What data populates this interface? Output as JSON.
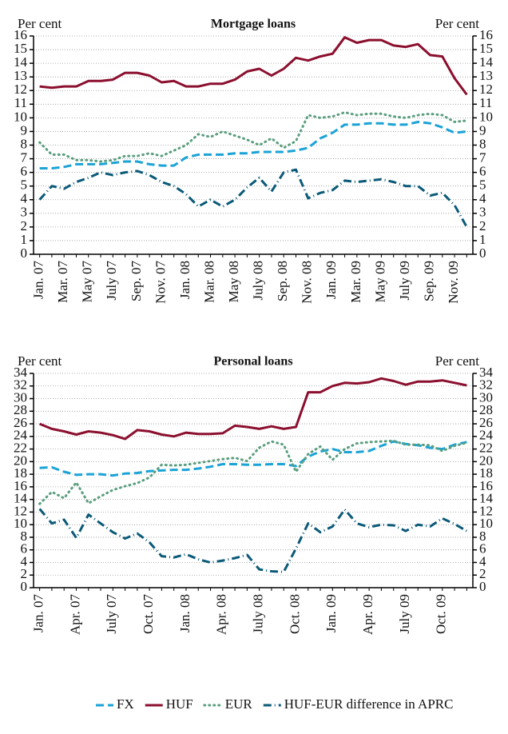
{
  "chart_data": [
    {
      "type": "line",
      "title": "Mortgage loans",
      "y_label": "Per cent",
      "y2_label": "Per cent",
      "categories": [
        "Jan. 07",
        null,
        "Mar. 07",
        null,
        "May 07",
        null,
        "July 07",
        null,
        "Sep. 07",
        null,
        "Nov. 07",
        null,
        "Jan. 08",
        null,
        "Mar. 08",
        null,
        "May 08",
        null,
        "July 08",
        null,
        "Sep. 08",
        null,
        "Nov. 08",
        null,
        "Jan. 09",
        null,
        "Mar. 09",
        null,
        "May 09",
        null,
        "July 09",
        null,
        "Sep. 09",
        null,
        "Nov. 09",
        null
      ],
      "ylim": [
        0,
        16
      ],
      "yticks": [
        0,
        1,
        2,
        3,
        4,
        5,
        6,
        7,
        8,
        9,
        10,
        11,
        12,
        13,
        14,
        15,
        16
      ],
      "y2lim": [
        0,
        16
      ],
      "y2ticks": [
        0,
        1,
        2,
        3,
        4,
        5,
        6,
        7,
        8,
        9,
        10,
        11,
        12,
        13,
        14,
        15,
        16
      ],
      "grid": true,
      "series": [
        {
          "name": "FX",
          "color": "#1ba3d6",
          "style": "dash",
          "values": [
            6.3,
            6.3,
            6.4,
            6.6,
            6.6,
            6.6,
            6.7,
            6.8,
            6.8,
            6.6,
            6.5,
            6.5,
            7.1,
            7.3,
            7.3,
            7.3,
            7.4,
            7.4,
            7.5,
            7.5,
            7.5,
            7.6,
            7.8,
            8.5,
            8.9,
            9.5,
            9.5,
            9.6,
            9.6,
            9.5,
            9.5,
            9.7,
            9.6,
            9.3,
            8.9,
            9.0
          ]
        },
        {
          "name": "HUF",
          "color": "#8b0f2e",
          "style": "solid",
          "values": [
            12.3,
            12.2,
            12.3,
            12.3,
            12.7,
            12.7,
            12.8,
            13.3,
            13.3,
            13.1,
            12.6,
            12.7,
            12.3,
            12.3,
            12.5,
            12.5,
            12.8,
            13.4,
            13.6,
            13.1,
            13.6,
            14.4,
            14.2,
            14.5,
            14.7,
            15.9,
            15.5,
            15.7,
            15.7,
            15.3,
            15.2,
            15.4,
            14.6,
            14.5,
            12.9,
            11.7
          ]
        },
        {
          "name": "EUR",
          "color": "#5a9e7e",
          "style": "dot",
          "values": [
            8.2,
            7.3,
            7.3,
            6.9,
            6.9,
            6.8,
            6.9,
            7.2,
            7.2,
            7.4,
            7.2,
            7.6,
            8.0,
            8.8,
            8.6,
            9.0,
            8.7,
            8.4,
            8.0,
            8.5,
            7.8,
            8.3,
            10.2,
            10.0,
            10.1,
            10.4,
            10.2,
            10.3,
            10.3,
            10.1,
            10.0,
            10.2,
            10.3,
            10.2,
            9.7,
            9.8
          ]
        },
        {
          "name": "HUF-EUR difference in APRC",
          "color": "#0b5a78",
          "style": "dashdot",
          "values": [
            4.0,
            5.0,
            4.8,
            5.3,
            5.6,
            6.0,
            5.8,
            6.0,
            6.1,
            5.8,
            5.3,
            5.0,
            4.4,
            3.5,
            4.0,
            3.5,
            4.0,
            4.9,
            5.6,
            4.6,
            6.0,
            6.2,
            4.1,
            4.5,
            4.7,
            5.4,
            5.3,
            5.4,
            5.5,
            5.3,
            5.0,
            5.0,
            4.3,
            4.5,
            3.6,
            2.0
          ]
        }
      ]
    },
    {
      "type": "line",
      "title": "Personal loans",
      "y_label": "Per cent",
      "y2_label": "Per cent",
      "categories": [
        "Jan. 07",
        null,
        null,
        "Apr. 07",
        null,
        null,
        "July 07",
        null,
        null,
        "Oct. 07",
        null,
        null,
        "Jan. 08",
        null,
        null,
        "Apr. 08",
        null,
        null,
        "July 08",
        null,
        null,
        "Oct. 08",
        null,
        null,
        "Jan. 09",
        null,
        null,
        "Apr. 09",
        null,
        null,
        "July 09",
        null,
        null,
        "Oct. 09",
        null,
        null
      ],
      "ylim": [
        0,
        34
      ],
      "yticks": [
        0,
        2,
        4,
        6,
        8,
        10,
        12,
        14,
        16,
        18,
        20,
        22,
        24,
        26,
        28,
        30,
        32,
        34
      ],
      "y2lim": [
        0,
        34
      ],
      "y2ticks": [
        0,
        2,
        4,
        6,
        8,
        10,
        12,
        14,
        16,
        18,
        20,
        22,
        24,
        26,
        28,
        30,
        32,
        34
      ],
      "grid": true,
      "series": [
        {
          "color": "#1ba3d6",
          "style": "dash",
          "values": [
            19,
            19.1,
            18.4,
            17.9,
            18,
            18,
            17.8,
            18.1,
            18.2,
            18.5,
            18.6,
            18.7,
            18.7,
            18.9,
            19.2,
            19.6,
            19.6,
            19.5,
            19.5,
            19.6,
            19.6,
            19.3,
            20.8,
            21.6,
            22,
            21.5,
            21.5,
            21.7,
            22.5,
            23.2,
            22.8,
            22.6,
            22.2,
            22,
            22.7,
            23.1
          ]
        },
        {
          "color": "#8b0f2e",
          "style": "solid",
          "values": [
            26,
            25.2,
            24.8,
            24.3,
            24.8,
            24.6,
            24.2,
            23.6,
            25.0,
            24.8,
            24.3,
            24.0,
            24.6,
            24.4,
            24.4,
            24.5,
            25.7,
            25.5,
            25.2,
            25.6,
            25.2,
            25.5,
            31,
            31,
            32,
            32.5,
            32.4,
            32.6,
            33.2,
            32.8,
            32.2,
            32.7,
            32.7,
            32.9,
            32.5,
            32.1
          ]
        },
        {
          "color": "#5a9e7e",
          "style": "dot",
          "values": [
            13.3,
            15.2,
            14.2,
            16.7,
            13.4,
            14.5,
            15.5,
            16.1,
            16.6,
            17.5,
            19.5,
            19.4,
            19.5,
            19.8,
            20.1,
            20.4,
            20.6,
            20.1,
            22.2,
            23.2,
            22.7,
            18.4,
            21.2,
            22.4,
            20.3,
            22.0,
            22.9,
            23.1,
            23.2,
            23.3,
            22.7,
            22.7,
            22.6,
            21.7,
            22.5,
            23.0
          ]
        },
        {
          "color": "#0b5a78",
          "style": "dashdot",
          "values": [
            12.5,
            10.2,
            10.8,
            7.9,
            11.6,
            10.2,
            8.8,
            7.8,
            8.6,
            7.2,
            5.0,
            4.8,
            5.3,
            4.5,
            4.0,
            4.3,
            4.7,
            5.2,
            2.9,
            2.6,
            2.5,
            6.2,
            10.2,
            8.8,
            9.7,
            12.4,
            10.2,
            9.6,
            10.0,
            9.9,
            9.0,
            10.0,
            9.7,
            11.0,
            10.1,
            9.0
          ]
        }
      ]
    }
  ]
}
